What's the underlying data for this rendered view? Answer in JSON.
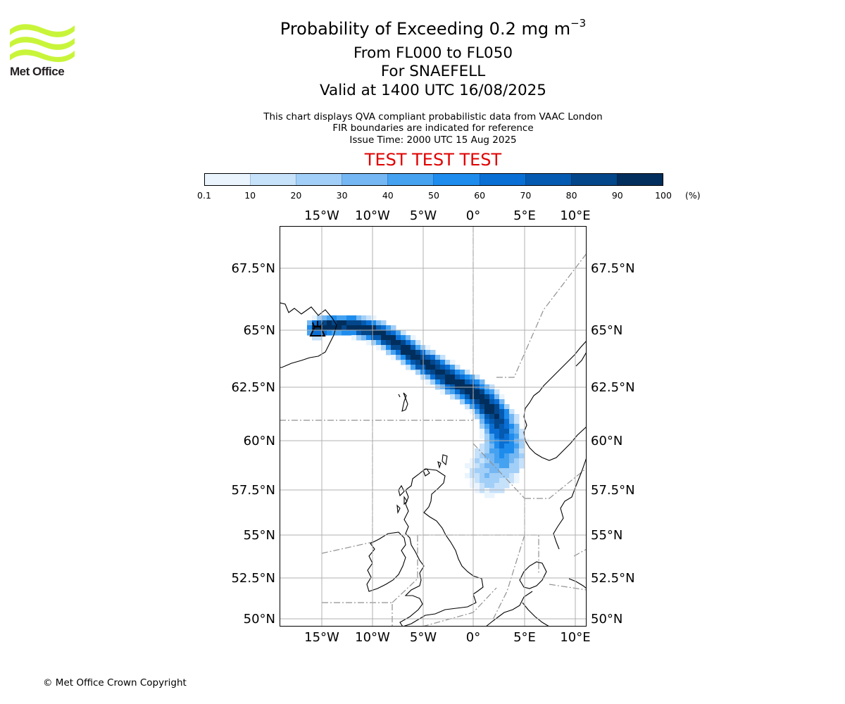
{
  "header": {
    "title_main": "Probability of Exceeding 0.2 mg m",
    "title_exp": "−3",
    "flight_levels": "From FL000 to FL050",
    "volcano": "For SNAEFELL",
    "valid_time": "Valid at 1400 UTC 16/08/2025"
  },
  "notes": {
    "line1": "This chart displays QVA compliant probabilistic data from VAAC London",
    "line2": "FIR boundaries are indicated for reference",
    "line3": "Issue Time: 2000 UTC 15 Aug 2025"
  },
  "banner": "TEST TEST TEST",
  "logo": {
    "text": "Met Office",
    "color": "#c8f53a"
  },
  "colorbar": {
    "ticks": [
      "0.1",
      "10",
      "20",
      "30",
      "40",
      "50",
      "60",
      "70",
      "80",
      "90",
      "100"
    ],
    "unit": "(%)",
    "colors": [
      "#eaf4fd",
      "#c6e1fa",
      "#a2cff7",
      "#74b7f3",
      "#45a2f0",
      "#1e8ced",
      "#0a6fd4",
      "#045ab0",
      "#03468a",
      "#012e5c"
    ]
  },
  "map": {
    "lon_labels": [
      "15°W",
      "10°W",
      "5°W",
      "0°",
      "5°E",
      "10°E"
    ],
    "lat_labels": [
      "67.5°N",
      "65°N",
      "62.5°N",
      "60°N",
      "57.5°N",
      "55°N",
      "52.5°N",
      "50°N"
    ],
    "volcano_icon": "volcano-icon"
  },
  "footer": {
    "copyright": "© Met Office Crown Copyright"
  }
}
